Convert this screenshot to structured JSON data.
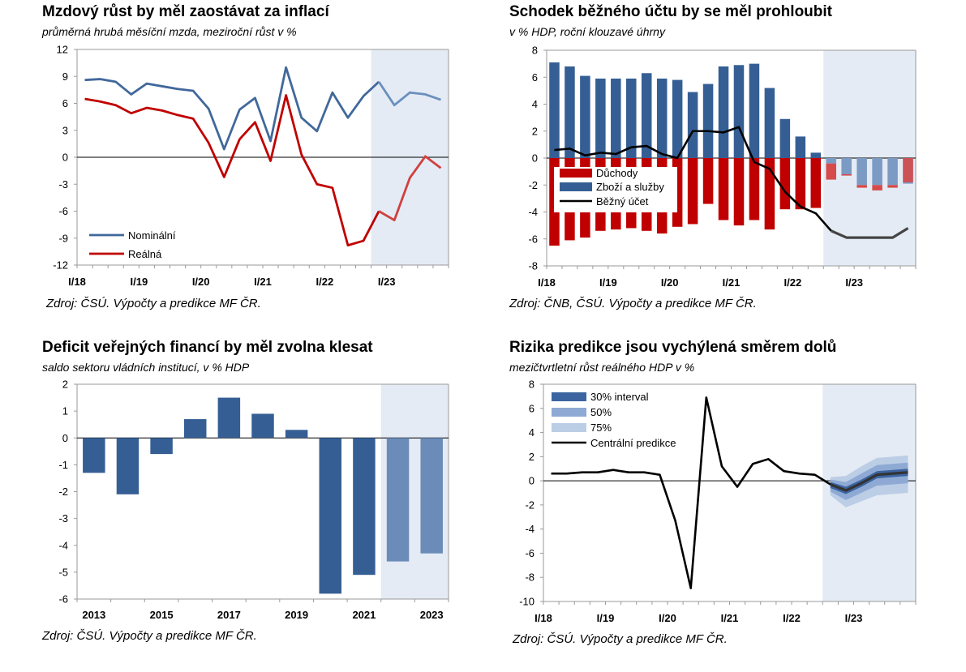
{
  "charts": [
    {
      "title": "Mzdový růst by měl zaostávat za inflací",
      "subtitle": "průměrná hrubá měsíční mzda, meziroční růst v %",
      "source": "Zdroj: ČSÚ. Výpočty a predikce MF ČR."
    },
    {
      "title": "Schodek běžného účtu by se měl prohloubit",
      "subtitle": "v % HDP, roční klouzavé úhrny",
      "source": "Zdroj: ČNB, ČSÚ. Výpočty a predikce MF ČR."
    },
    {
      "title": "Deficit veřejných financí by měl zvolna klesat",
      "subtitle": "saldo sektoru vládních institucí, v % HDP",
      "source": "Zdroj: ČSÚ. Výpočty a predikce MF ČR."
    },
    {
      "title": "Rizika predikce jsou vychýlená směrem dolů",
      "subtitle": "mezičtvrtletní růst reálného HDP v %",
      "source": "Zdroj: ČSÚ. Výpočty a predikce MF ČR."
    }
  ],
  "colors": {
    "nominal": "#41689b",
    "real": "#c00000",
    "pensions": "#c00000",
    "goods": "#355f94",
    "forecast_shade": "#e4ebf4",
    "balance_line": "#000000",
    "bar_actual": "#355f94",
    "bar_forecast": "#6b8cb8",
    "fan30": "#3c64a0",
    "fan50": "#8eaad4",
    "fan75": "#bccde6"
  },
  "chart_data": [
    {
      "type": "line",
      "x": [
        "I/18",
        "II/18",
        "III/18",
        "IV/18",
        "I/19",
        "II/19",
        "III/19",
        "IV/19",
        "I/20",
        "II/20",
        "III/20",
        "IV/20",
        "I/21",
        "II/21",
        "III/21",
        "IV/21",
        "I/22",
        "II/22",
        "III/22",
        "IV/22",
        "I/23",
        "II/23",
        "III/23",
        "IV/23"
      ],
      "x_tick_labels": [
        "I/18",
        "I/19",
        "I/20",
        "I/21",
        "I/22",
        "I/23"
      ],
      "series": [
        {
          "name": "Nominální",
          "values": [
            8.6,
            8.7,
            8.4,
            7.0,
            8.2,
            7.9,
            7.6,
            7.4,
            5.4,
            0.9,
            5.3,
            6.6,
            1.8,
            10.0,
            4.4,
            2.9,
            7.2,
            4.4,
            6.8,
            8.4,
            5.8,
            7.2,
            7.0,
            6.4
          ]
        },
        {
          "name": "Reálná",
          "values": [
            6.5,
            6.2,
            5.8,
            4.9,
            5.5,
            5.2,
            4.7,
            4.3,
            1.6,
            -2.2,
            2.0,
            3.9,
            -0.4,
            6.9,
            0.3,
            -3.0,
            -3.4,
            -9.8,
            -9.3,
            -6.0,
            -7.0,
            -2.3,
            0.1,
            -1.2
          ]
        }
      ],
      "ylim": [
        -12,
        12
      ],
      "y_ticks": [
        12,
        9,
        6,
        3,
        0,
        -3,
        -6,
        -9,
        -12
      ],
      "forecast_from_index": 19,
      "legend_position": "bottom-left"
    },
    {
      "type": "bar",
      "x": [
        "I/18",
        "II/18",
        "III/18",
        "IV/18",
        "I/19",
        "II/19",
        "III/19",
        "IV/19",
        "I/20",
        "II/20",
        "III/20",
        "IV/20",
        "I/21",
        "II/21",
        "III/21",
        "IV/21",
        "I/22",
        "II/22",
        "III/22",
        "IV/22",
        "I/23",
        "II/23",
        "III/23",
        "IV/23"
      ],
      "x_tick_labels": [
        "I/18",
        "I/19",
        "I/20",
        "I/21",
        "I/22",
        "I/23"
      ],
      "series": [
        {
          "name": "Důchody",
          "type": "bar",
          "values": [
            -6.5,
            -6.1,
            -5.9,
            -5.4,
            -5.3,
            -5.2,
            -5.4,
            -5.6,
            -5.1,
            -4.9,
            -3.4,
            -4.6,
            -5.0,
            -4.6,
            -5.3,
            -3.8,
            -3.8,
            -3.7,
            -1.6,
            -1.3,
            -2.2,
            -2.4,
            -2.2,
            -1.8
          ]
        },
        {
          "name": "Zboží a služby",
          "type": "bar",
          "values": [
            7.1,
            6.8,
            6.1,
            5.9,
            5.9,
            5.9,
            6.3,
            5.9,
            5.8,
            4.9,
            5.5,
            6.8,
            6.9,
            7.0,
            5.2,
            2.9,
            1.6,
            0.4,
            -0.4,
            -1.2,
            -2.0,
            -2.0,
            -2.0,
            -1.9
          ]
        },
        {
          "name": "Běžný účet",
          "type": "line",
          "values": [
            0.6,
            0.7,
            0.2,
            0.4,
            0.3,
            0.8,
            0.9,
            0.3,
            0.0,
            2.0,
            2.0,
            1.9,
            2.3,
            -0.3,
            -0.8,
            -2.5,
            -3.6,
            -4.1,
            -5.4,
            -5.9,
            -5.9,
            -5.9,
            -5.9,
            -5.2
          ]
        }
      ],
      "ylim": [
        -8,
        8
      ],
      "y_ticks": [
        8,
        6,
        4,
        2,
        0,
        -2,
        -4,
        -6,
        -8
      ],
      "forecast_from_index": 18,
      "legend_position": "left"
    },
    {
      "type": "bar",
      "categories": [
        "2013",
        "2014",
        "2015",
        "2016",
        "2017",
        "2018",
        "2019",
        "2020",
        "2021",
        "2022",
        "2023"
      ],
      "x_tick_labels": [
        "2013",
        "2015",
        "2017",
        "2019",
        "2021",
        "2023"
      ],
      "values": [
        -1.3,
        -2.1,
        -0.6,
        0.7,
        1.5,
        0.9,
        0.3,
        -5.8,
        -5.1,
        -4.6,
        -4.3
      ],
      "ylim": [
        -6,
        2
      ],
      "y_ticks": [
        2,
        1,
        0,
        -1,
        -2,
        -3,
        -4,
        -5,
        -6
      ],
      "forecast_from_index": 9
    },
    {
      "type": "line",
      "x": [
        "I/18",
        "II/18",
        "III/18",
        "IV/18",
        "I/19",
        "II/19",
        "III/19",
        "IV/19",
        "I/20",
        "II/20",
        "III/20",
        "IV/20",
        "I/21",
        "II/21",
        "III/21",
        "IV/21",
        "I/22",
        "II/22",
        "III/22",
        "IV/22",
        "I/23",
        "II/23",
        "III/23",
        "IV/23"
      ],
      "x_tick_labels": [
        "I/18",
        "I/19",
        "I/20",
        "I/21",
        "I/22",
        "I/23"
      ],
      "series": [
        {
          "name": "Centrální predikce",
          "values": [
            0.6,
            0.6,
            0.7,
            0.7,
            0.9,
            0.7,
            0.7,
            0.5,
            -3.3,
            -8.9,
            6.9,
            1.2,
            -0.5,
            1.4,
            1.8,
            0.8,
            0.6,
            0.5,
            -0.3,
            -0.8,
            -0.2,
            0.5,
            0.6,
            0.7
          ]
        }
      ],
      "fan_bands": [
        {
          "name": "30% interval",
          "lower": [
            -0.6,
            -1.1,
            -0.5,
            0.2,
            0.3,
            0.4
          ],
          "upper": [
            -0.1,
            -0.5,
            0.1,
            0.8,
            0.9,
            1.0
          ]
        },
        {
          "name": "50%",
          "lower": [
            -0.9,
            -1.6,
            -1.0,
            -0.4,
            -0.3,
            -0.2
          ],
          "upper": [
            0.1,
            -0.1,
            0.6,
            1.3,
            1.4,
            1.5
          ]
        },
        {
          "name": "75%",
          "lower": [
            -1.2,
            -2.2,
            -1.7,
            -1.2,
            -1.1,
            -1.0
          ],
          "upper": [
            0.3,
            0.4,
            1.2,
            1.9,
            2.0,
            2.1
          ]
        }
      ],
      "fan_from_index": 18,
      "ylim": [
        -10,
        8
      ],
      "y_ticks": [
        8,
        6,
        4,
        2,
        0,
        -2,
        -4,
        -6,
        -8,
        -10
      ],
      "forecast_from_index": 18,
      "legend_position": "top-left"
    }
  ]
}
